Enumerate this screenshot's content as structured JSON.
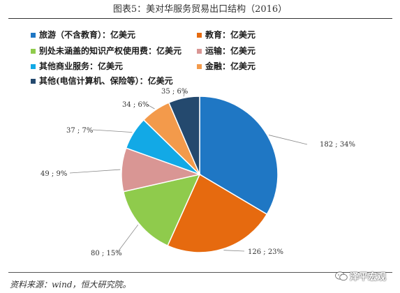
{
  "title": "图表5：美对华服务贸易出口结构（2016）",
  "source": "资料来源：wind，恒大研究院。",
  "watermark": "泽平宏观",
  "chart_data": {
    "type": "pie",
    "unit": "亿美元",
    "slices": [
      {
        "label": "旅游（不含教育）：亿美元",
        "value": 182,
        "percent": 34,
        "data_label": "182 ; 34%",
        "color": "#1f77c4"
      },
      {
        "label": "教育：亿美元",
        "value": 126,
        "percent": 23,
        "data_label": "126 ; 23%",
        "color": "#e66a0f"
      },
      {
        "label": "别处未涵盖的知识产权使用费：亿美元",
        "value": 80,
        "percent": 15,
        "data_label": "80 ; 15%",
        "color": "#8fcb4c"
      },
      {
        "label": "运输：亿美元",
        "value": 49,
        "percent": 9,
        "data_label": "49 ; 9%",
        "color": "#d99694"
      },
      {
        "label": "其他商业服务：亿美元",
        "value": 37,
        "percent": 7,
        "data_label": "37 ; 7%",
        "color": "#12a9e6"
      },
      {
        "label": "金融：亿美元",
        "value": 34,
        "percent": 6,
        "data_label": "34 ; 6%",
        "color": "#f39a4b"
      },
      {
        "label": "其他(电信计算机、保险等）：亿美元",
        "value": 35,
        "percent": 6,
        "data_label": "35 ; 6%",
        "color": "#24496e"
      }
    ],
    "legend_placement": "top-left"
  }
}
